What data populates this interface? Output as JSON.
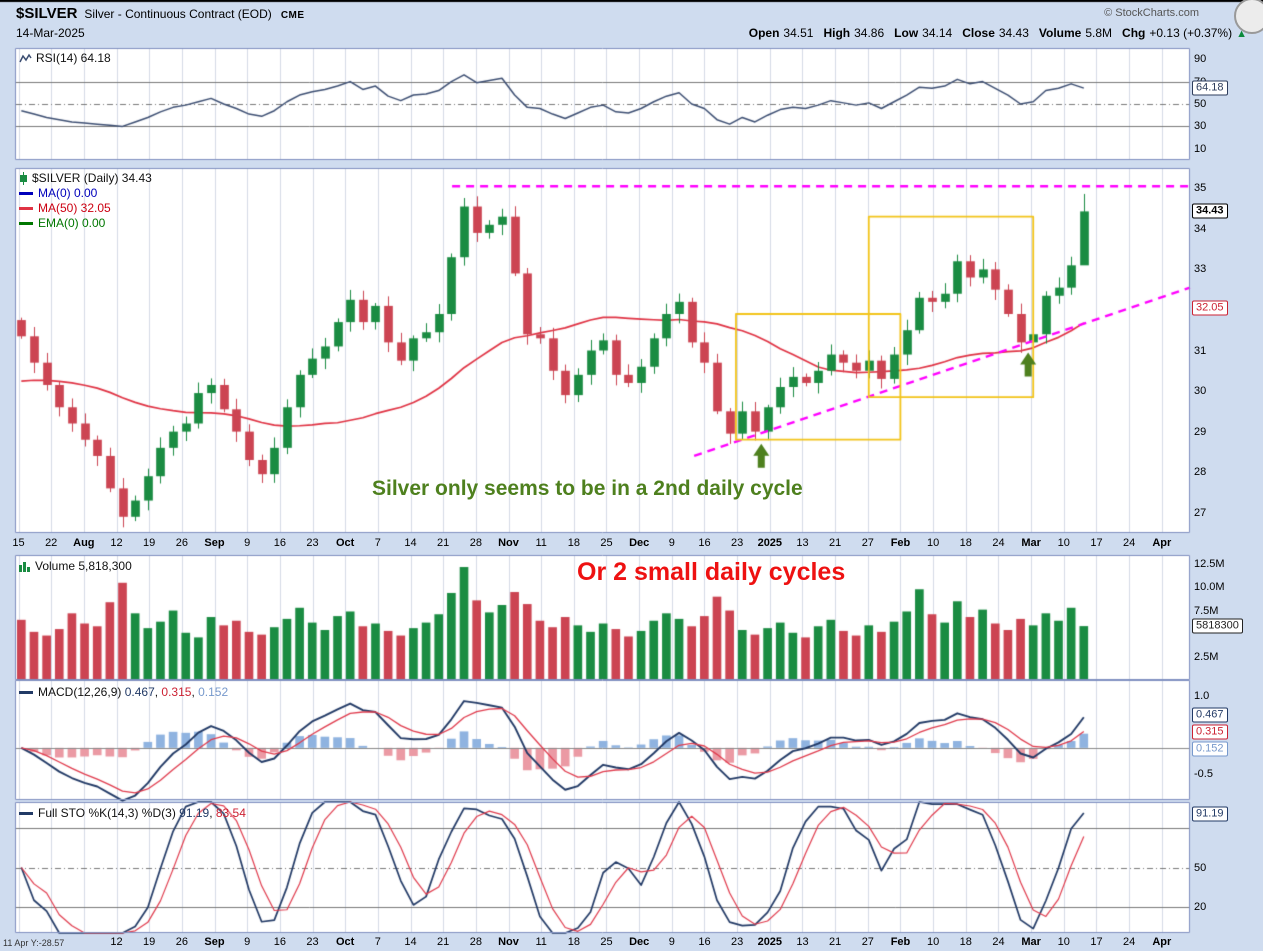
{
  "header": {
    "symbol": "$SILVER",
    "description": "Silver - Continuous Contract (EOD)",
    "exchange": "CME",
    "date": "14-Mar-2025",
    "copyright": "© StockCharts.com",
    "quote": {
      "open_label": "Open",
      "open": "34.51",
      "high_label": "High",
      "high": "34.86",
      "low_label": "Low",
      "low": "34.14",
      "close_label": "Close",
      "close": "34.43",
      "volume_label": "Volume",
      "volume": "5.8M",
      "chg_label": "Chg",
      "chg": "+0.13 (+0.37%)",
      "arrow": "▲"
    }
  },
  "panels": {
    "rsi": {
      "legend": "RSI(14) 64.18",
      "ylabels": [
        {
          "t": "90",
          "v": 90
        },
        {
          "t": "70",
          "v": 70
        },
        {
          "t": "50",
          "v": 50
        },
        {
          "t": "30",
          "v": 30
        },
        {
          "t": "10",
          "v": 10
        }
      ],
      "badges": [
        {
          "t": "64.18",
          "v": 64.18,
          "c": "#2e3d5c"
        }
      ]
    },
    "main": {
      "legend_symbol": "$SILVER (Daily) 34.43",
      "legend_ma0": "MA(0) 0.00",
      "legend_ma50": "MA(50) 32.05",
      "legend_ema0": "EMA(0) 0.00",
      "ylabels": [
        {
          "t": "35",
          "v": 35
        },
        {
          "t": "34",
          "v": 34
        },
        {
          "t": "33",
          "v": 33
        },
        {
          "t": "31",
          "v": 31
        },
        {
          "t": "30",
          "v": 30
        },
        {
          "t": "29",
          "v": 29
        },
        {
          "t": "28",
          "v": 28
        },
        {
          "t": "27",
          "v": 27
        }
      ],
      "badges": [
        {
          "t": "34.43",
          "v": 34.43,
          "c": "#000000",
          "bold": 1
        },
        {
          "t": "32.05",
          "v": 32.05,
          "c": "#cc2233"
        }
      ]
    },
    "volume": {
      "legend": "Volume 5,818,300",
      "ylabels": [
        {
          "t": "12.5M",
          "v": 12.5
        },
        {
          "t": "10.0M",
          "v": 10
        },
        {
          "t": "7.5M",
          "v": 7.5
        },
        {
          "t": "2.5M",
          "v": 2.5
        }
      ],
      "badges": [
        {
          "t": "5818300",
          "v": 5.8183,
          "c": "#222222"
        }
      ]
    },
    "macd": {
      "legend_name": "MACD(12,26,9)",
      "v1": "0.467",
      "sep1": ", ",
      "v2": "0.315",
      "sep2": ", ",
      "v3": "0.152",
      "ylabels": [
        {
          "t": "1.0",
          "v": 1.0
        },
        {
          "t": "0.0",
          "v": 0
        },
        {
          "t": "-0.5",
          "v": -0.5
        }
      ],
      "badges": [
        {
          "t": "0.467",
          "v": 0.62,
          "c": "#223a66"
        },
        {
          "t": "0.315",
          "v": 0.3,
          "c": "#cc2233"
        },
        {
          "t": "0.152",
          "v": -0.02,
          "c": "#7799cc"
        }
      ]
    },
    "sto": {
      "legend_name": "Full STO %K(14,3) %D(3)",
      "v1": "91.19",
      "sep": ", ",
      "v2": "83.54",
      "ylabels": [
        {
          "t": "50",
          "v": 50
        },
        {
          "t": "20",
          "v": 20
        }
      ],
      "badges": [
        {
          "t": "91.19",
          "v": 91.19,
          "c": "#223a66"
        }
      ]
    }
  },
  "axis": {
    "bottom_readout": "11 Apr Y:-28.57",
    "ticks": [
      {
        "l": "15",
        "p": 0.003
      },
      {
        "l": "22",
        "p": 0.0308
      },
      {
        "l": "Aug",
        "p": 0.0586,
        "b": 1
      },
      {
        "l": "12",
        "p": 0.0864
      },
      {
        "l": "19",
        "p": 0.1142
      },
      {
        "l": "26",
        "p": 0.142
      },
      {
        "l": "Sep",
        "p": 0.1698,
        "b": 1
      },
      {
        "l": "9",
        "p": 0.1976
      },
      {
        "l": "16",
        "p": 0.2254
      },
      {
        "l": "23",
        "p": 0.2532
      },
      {
        "l": "Oct",
        "p": 0.281,
        "b": 1
      },
      {
        "l": "7",
        "p": 0.3088
      },
      {
        "l": "14",
        "p": 0.3366
      },
      {
        "l": "21",
        "p": 0.3644
      },
      {
        "l": "28",
        "p": 0.3922
      },
      {
        "l": "Nov",
        "p": 0.42,
        "b": 1
      },
      {
        "l": "11",
        "p": 0.4478
      },
      {
        "l": "18",
        "p": 0.4756
      },
      {
        "l": "25",
        "p": 0.5034
      },
      {
        "l": "Dec",
        "p": 0.5312,
        "b": 1
      },
      {
        "l": "9",
        "p": 0.559
      },
      {
        "l": "16",
        "p": 0.5868
      },
      {
        "l": "23",
        "p": 0.6146
      },
      {
        "l": "2025",
        "p": 0.6424,
        "b": 1
      },
      {
        "l": "13",
        "p": 0.6702
      },
      {
        "l": "21",
        "p": 0.698
      },
      {
        "l": "27",
        "p": 0.7258
      },
      {
        "l": "Feb",
        "p": 0.7536,
        "b": 1
      },
      {
        "l": "10",
        "p": 0.7814
      },
      {
        "l": "18",
        "p": 0.8092
      },
      {
        "l": "24",
        "p": 0.837
      },
      {
        "l": "Mar",
        "p": 0.8648,
        "b": 1
      },
      {
        "l": "10",
        "p": 0.8926
      },
      {
        "l": "17",
        "p": 0.9204
      },
      {
        "l": "24",
        "p": 0.9482
      },
      {
        "l": "Apr",
        "p": 0.976,
        "b": 1
      }
    ]
  },
  "chart_data": [
    {
      "type": "line",
      "panel": "rsi",
      "title": "RSI(14)",
      "last": 64.18,
      "ylim": [
        0,
        100
      ],
      "hlines": [
        {
          "v": 70,
          "style": "solid"
        },
        {
          "v": 50,
          "style": "dashdot"
        },
        {
          "v": 30,
          "style": "solid"
        }
      ],
      "values": [
        44,
        41,
        38,
        36,
        34,
        33,
        32,
        31,
        30,
        34,
        38,
        43,
        47,
        49,
        52,
        55,
        50,
        46,
        41,
        39,
        44,
        52,
        58,
        61,
        63,
        66,
        70,
        63,
        66,
        57,
        53,
        58,
        59,
        62,
        70,
        76,
        69,
        71,
        73,
        58,
        47,
        46,
        41,
        37,
        42,
        47,
        49,
        43,
        42,
        46,
        52,
        57,
        60,
        50,
        46,
        36,
        32,
        38,
        34,
        40,
        45,
        47,
        46,
        49,
        53,
        51,
        49,
        51,
        46,
        52,
        58,
        65,
        64,
        66,
        72,
        68,
        70,
        64,
        58,
        50,
        52,
        62,
        64,
        68,
        64.18
      ]
    },
    {
      "type": "candlestick",
      "panel": "main",
      "title": "$SILVER (Daily)",
      "x_note": "Jul 15 2024 – Mar 14 2025, each point ≈ 2 trading days",
      "last": 34.43,
      "last_open": 34.51,
      "last_high": 34.86,
      "last_low": 34.14,
      "ma50_last": 32.05,
      "ma50_window": 25,
      "ma50_seed": 30.2,
      "ylim": [
        26.5,
        35.5
      ],
      "closes": [
        31.35,
        30.7,
        30.15,
        29.6,
        29.2,
        28.8,
        28.4,
        27.6,
        26.9,
        27.3,
        27.9,
        28.6,
        29.0,
        29.2,
        29.95,
        30.15,
        29.55,
        29.0,
        28.3,
        27.95,
        28.6,
        29.6,
        30.4,
        30.8,
        31.1,
        31.7,
        32.25,
        31.7,
        32.1,
        31.2,
        30.75,
        31.3,
        31.45,
        31.9,
        33.3,
        34.55,
        33.9,
        34.1,
        34.3,
        32.9,
        31.4,
        31.3,
        30.5,
        29.9,
        30.4,
        31.0,
        31.25,
        30.4,
        30.2,
        30.6,
        31.3,
        31.9,
        32.2,
        31.2,
        30.7,
        29.5,
        28.95,
        29.5,
        29.0,
        29.6,
        30.1,
        30.35,
        30.2,
        30.5,
        30.9,
        30.7,
        30.5,
        30.75,
        30.3,
        30.9,
        31.5,
        32.3,
        32.2,
        32.4,
        33.2,
        32.8,
        33.0,
        32.5,
        31.9,
        31.2,
        31.4,
        32.35,
        32.55,
        33.1,
        34.43
      ],
      "annotations": {
        "label": "Silver only seems to be in a 2nd daily cycle",
        "hline": {
          "price": 35.05,
          "fx1": 0.372,
          "fx2": 1.0
        },
        "trendline": {
          "fx1": 0.578,
          "price1": 28.4,
          "fx2": 1.0,
          "price2": 32.55
        },
        "boxes": [
          {
            "i1": 57,
            "i2": 69,
            "p1": 28.8,
            "p2": 31.9
          },
          {
            "i1": 67.5,
            "i2": 79.5,
            "p1": 29.85,
            "p2": 34.3
          }
        ],
        "arrows": [
          {
            "i": 58.5,
            "price": 28.7
          },
          {
            "i": 79.6,
            "price": 30.95
          }
        ]
      }
    },
    {
      "type": "bar",
      "panel": "volume",
      "title": "Volume",
      "last": 5818300,
      "annotation_label": "Or 2 small daily cycles",
      "ylim_millions": [
        0,
        13.5
      ],
      "values_millions": [
        6.5,
        5.2,
        4.8,
        5.5,
        7.2,
        6.1,
        5.8,
        8.4,
        10.5,
        7.2,
        5.6,
        6.3,
        7.5,
        5.1,
        4.6,
        6.8,
        5.9,
        6.4,
        5.2,
        4.9,
        5.7,
        6.6,
        7.8,
        6.2,
        5.4,
        6.9,
        7.4,
        5.8,
        6.1,
        5.3,
        4.8,
        5.6,
        6.2,
        7.1,
        9.4,
        12.2,
        8.6,
        7.3,
        8.1,
        9.5,
        8.2,
        6.4,
        5.7,
        6.8,
        5.9,
        5.2,
        6.1,
        5.5,
        4.7,
        5.3,
        6.4,
        7.2,
        6.6,
        5.8,
        6.9,
        9.0,
        7.5,
        5.4,
        4.9,
        5.6,
        6.2,
        5.1,
        4.6,
        5.8,
        6.5,
        5.3,
        4.8,
        5.9,
        5.2,
        6.3,
        7.4,
        9.8,
        7.1,
        6.2,
        8.5,
        6.8,
        7.6,
        6.1,
        5.4,
        6.6,
        5.9,
        7.2,
        6.4,
        7.8,
        5.82
      ]
    },
    {
      "type": "line",
      "panel": "macd",
      "title": "MACD(12,26,9)",
      "last_values": [
        0.467,
        0.315,
        0.152
      ],
      "ylim": [
        -1.0,
        1.3
      ],
      "fast": 4,
      "slow": 9,
      "signal": 4,
      "derived": "MACD line, signal and histogram computed from the closes series above"
    },
    {
      "type": "line",
      "panel": "sto",
      "title": "Full STO %K(14,3) %D(3)",
      "last_values": [
        91.19,
        83.54
      ],
      "ylim": [
        0,
        100
      ],
      "hlines": [
        {
          "v": 80,
          "style": "solid"
        },
        {
          "v": 50,
          "style": "dashdot"
        },
        {
          "v": 20,
          "style": "solid"
        }
      ],
      "derived": "stochastic %K/%D computed from the closes series above"
    }
  ],
  "colors": {
    "bg": "#cfdcef",
    "plot_bg": "#ffffff",
    "grid": "#d5dae6",
    "border": "#7f8fc0",
    "up": "#1a8c42",
    "down": "#cc4452",
    "ma50": "#e03344",
    "ma0": "#0000bb",
    "ema0": "#007700",
    "rsi_line": "#3c4e72",
    "macd_line": "#223a66",
    "macd_signal": "#e03a4c",
    "hist_pos": "#8fb3e0",
    "hist_neg": "#eb9aa4",
    "sto_k": "#223a66",
    "sto_d": "#e03a4c",
    "magenta": "#ff00ff",
    "gold": "#f2c41a",
    "arrow_green": "#4e801e",
    "annotation_green": "#4e801e",
    "annotation_red": "#ee1111",
    "quote_arrow": "#0b8a3c"
  }
}
